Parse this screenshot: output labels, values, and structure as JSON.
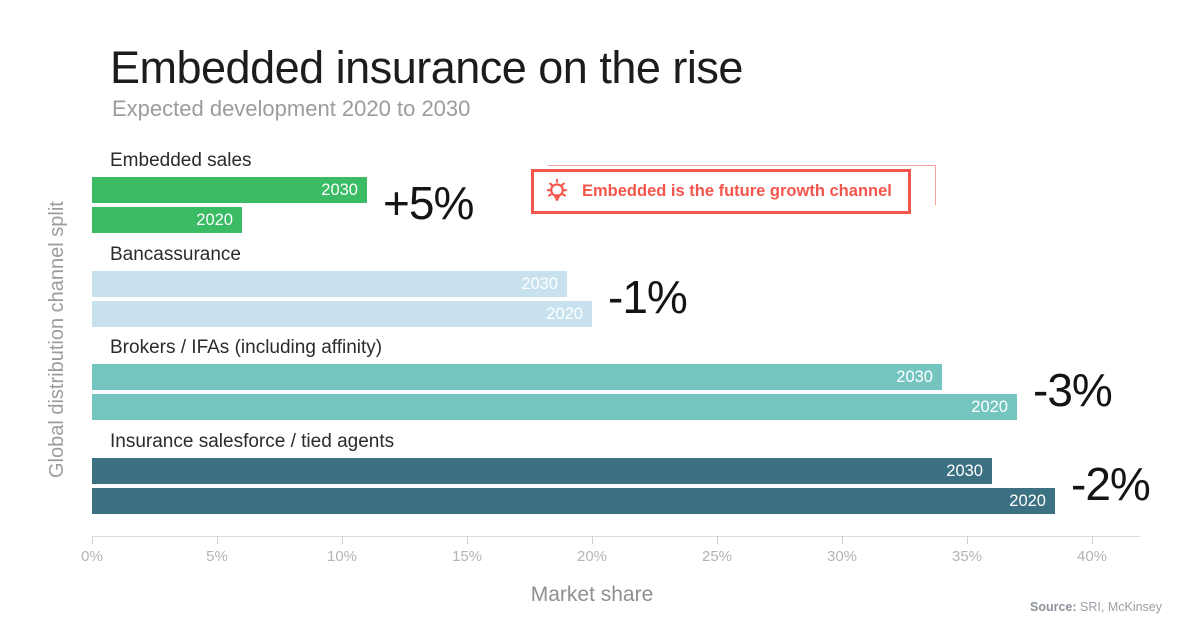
{
  "header": {
    "title": "Embedded insurance on the rise",
    "subtitle": "Expected development 2020 to 2030"
  },
  "callout": {
    "text": "Embedded is the future growth channel",
    "icon": "lightbulb-icon",
    "accent_color": "#f4564c"
  },
  "source": {
    "label": "Source:",
    "text": "SRI, McKinsey"
  },
  "chart_data": {
    "type": "bar",
    "orientation": "horizontal",
    "title": "Embedded insurance on the rise",
    "subtitle": "Expected development 2020 to 2030",
    "xlabel": "Market share",
    "ylabel": "Global distribution channel split",
    "xlim": [
      0,
      40
    ],
    "grid": false,
    "legend": "none",
    "x_tick_values": [
      0,
      5,
      10,
      15,
      20,
      25,
      30,
      35,
      40
    ],
    "x_tick_labels": [
      "0%",
      "5%",
      "10%",
      "15%",
      "20%",
      "25%",
      "30%",
      "35%",
      "40%"
    ],
    "bar_label_series": [
      "2030",
      "2020"
    ],
    "categories": [
      "Embedded sales",
      "Bancassurance",
      "Brokers / IFAs (including affinity)",
      "Insurance salesforce / tied agents"
    ],
    "groups": [
      {
        "label": "Embedded sales",
        "color": "#3abb64",
        "values": {
          "2030": 11,
          "2020": 6
        },
        "change": "+5%"
      },
      {
        "label": "Bancassurance",
        "color": "#c7e2ee",
        "values": {
          "2030": 19,
          "2020": 20
        },
        "change": "-1%"
      },
      {
        "label": "Brokers / IFAs (including affinity)",
        "color": "#74c4c0",
        "values": {
          "2030": 34,
          "2020": 37
        },
        "change": "-3%"
      },
      {
        "label": "Insurance salesforce / tied agents",
        "color": "#3c7183",
        "values": {
          "2030": 36,
          "2020": 38.5
        },
        "change": "-2%"
      }
    ],
    "colors": {
      "embedded_sales": "#3abb64",
      "bancassurance": "#c7e2ee",
      "brokers_ifas": "#74c4c0",
      "insurance_salesforce": "#3c7183",
      "callout_red": "#f4564c",
      "axis_gray": "#cfcfcf",
      "text_dark": "#1c1c1c",
      "text_gray": "#9c9c9c"
    }
  }
}
